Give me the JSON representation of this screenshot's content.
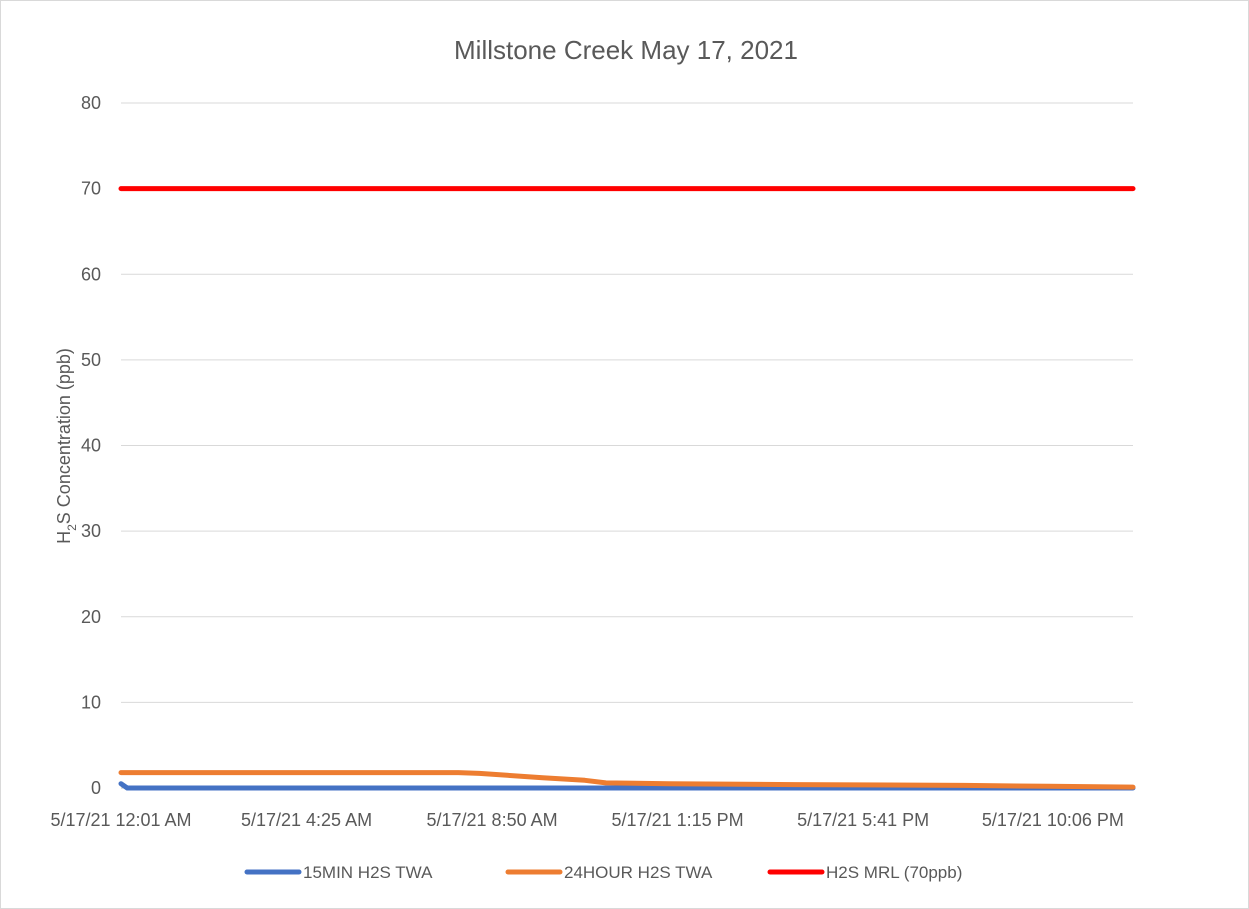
{
  "chart_data": {
    "type": "line",
    "title": "Millstone Creek May 17, 2021",
    "ylabel": {
      "main": "H",
      "sub": "2",
      "rest": "S Concentration (ppb)"
    },
    "xlabel": "",
    "ylim": [
      0,
      80
    ],
    "yticks": [
      0,
      10,
      20,
      30,
      40,
      50,
      60,
      70,
      80
    ],
    "grid": true,
    "legend_position": "bottom",
    "x_start_label": "5/17/21 12:01 AM",
    "x": [
      "5/17/21 12:01 AM",
      "5/17/21 4:25 AM",
      "5/17/21 8:50 AM",
      "5/17/21 1:15 PM",
      "5/17/21 5:41 PM",
      "5/17/21 10:06 PM"
    ],
    "x_tick_labels": [
      "5/17/21 12:01 AM",
      "5/17/21 4:25 AM",
      "5/17/21 8:50 AM",
      "5/17/21 1:15 PM",
      "5/17/21 5:41 PM",
      "5/17/21 10:06 PM"
    ],
    "x_hours": [
      0,
      4.4,
      8.8,
      13.2,
      17.6,
      22.1
    ],
    "x_end_hours": 24,
    "series": [
      {
        "name": "15MIN H2S TWA",
        "color": "#4472c4",
        "points": [
          [
            0,
            0.5
          ],
          [
            0.15,
            0
          ],
          [
            24,
            0
          ]
        ]
      },
      {
        "name": "24HOUR H2S TWA",
        "color": "#ed7d31",
        "points": [
          [
            0,
            1.8
          ],
          [
            8,
            1.8
          ],
          [
            8.5,
            1.7
          ],
          [
            10,
            1.2
          ],
          [
            11,
            0.9
          ],
          [
            11.5,
            0.6
          ],
          [
            13,
            0.5
          ],
          [
            16,
            0.4
          ],
          [
            20,
            0.3
          ],
          [
            22,
            0.2
          ],
          [
            24,
            0.1
          ]
        ]
      },
      {
        "name": "H2S MRL (70ppb)",
        "color": "#ff0000",
        "points": [
          [
            0,
            70
          ],
          [
            24,
            70
          ]
        ]
      }
    ]
  }
}
